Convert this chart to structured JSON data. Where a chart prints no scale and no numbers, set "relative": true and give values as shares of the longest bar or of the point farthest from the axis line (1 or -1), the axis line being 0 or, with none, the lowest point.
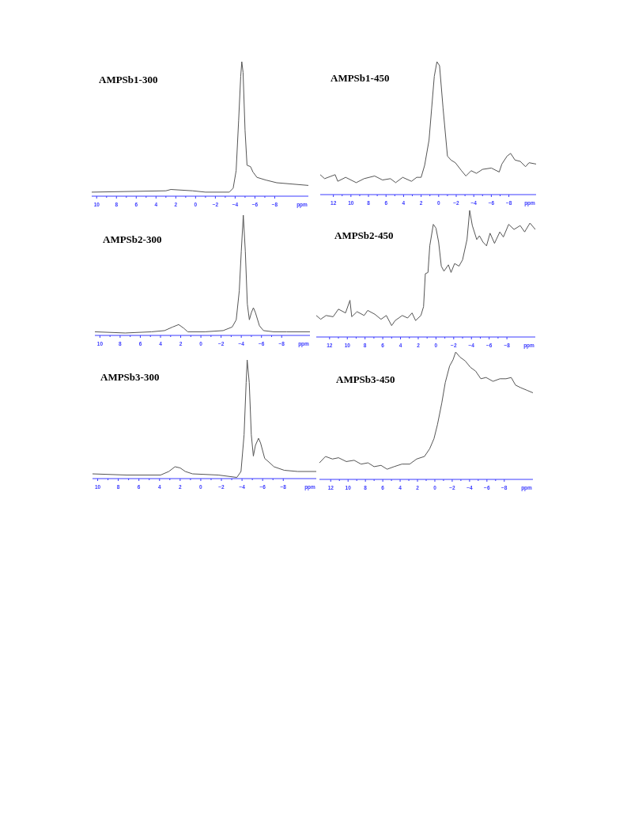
{
  "chart_data": [
    {
      "type": "line",
      "title": "AMPSb1-300",
      "xlabel": "ppm",
      "relative": true,
      "xlim": [
        10.5,
        -11.4
      ],
      "xticks": [
        10,
        8,
        6,
        4,
        2,
        0,
        -2,
        -4,
        -6,
        -8
      ],
      "series": [
        {
          "color": "#555555",
          "x": [
            10.5,
            3.0,
            2.5,
            0.3,
            -1.0,
            -3.4,
            -3.8,
            -4.1,
            -4.35,
            -4.56,
            -4.67,
            -4.8,
            -5.0,
            -5.2,
            -5.55,
            -5.8,
            -6.2,
            -7.1,
            -8.2,
            -9.8,
            -11.4
          ],
          "values": [
            0.03,
            0.04,
            0.05,
            0.04,
            0.03,
            0.03,
            0.06,
            0.19,
            0.56,
            0.89,
            1,
            0.92,
            0.49,
            0.23,
            0.22,
            0.18,
            0.14,
            0.12,
            0.1,
            0.09,
            0.08
          ]
        }
      ]
    },
    {
      "type": "line",
      "title": "AMPSb1-450",
      "xlabel": "ppm",
      "relative": true,
      "xlim": [
        13.5,
        -11.1
      ],
      "xticks": [
        12,
        10,
        8,
        6,
        4,
        2,
        0,
        -2,
        -4,
        -6,
        -8
      ],
      "series": [
        {
          "color": "#555555",
          "x": [
            13.5,
            13.0,
            11.8,
            11.5,
            10.6,
            9.4,
            8.5,
            7.3,
            6.4,
            5.5,
            4.9,
            4.1,
            3.1,
            2.5,
            2.0,
            1.6,
            1.1,
            0.8,
            0.5,
            0.2,
            -0.1,
            -0.5,
            -1.0,
            -1.4,
            -1.9,
            -2.6,
            -3.1,
            -3.7,
            -4.3,
            -5.0,
            -6.0,
            -6.9,
            -7.2,
            -7.8,
            -8.2,
            -8.7,
            -9.3,
            -9.9,
            -10.3,
            -11.1
          ],
          "values": [
            0.15,
            0.12,
            0.15,
            0.1,
            0.13,
            0.09,
            0.12,
            0.14,
            0.11,
            0.12,
            0.09,
            0.13,
            0.1,
            0.13,
            0.13,
            0.22,
            0.41,
            0.65,
            0.89,
            1,
            0.97,
            0.65,
            0.29,
            0.26,
            0.24,
            0.18,
            0.14,
            0.18,
            0.16,
            0.19,
            0.2,
            0.17,
            0.23,
            0.29,
            0.31,
            0.26,
            0.25,
            0.21,
            0.24,
            0.23
          ]
        }
      ]
    },
    {
      "type": "line",
      "title": "AMPSb2-300",
      "xlabel": "ppm",
      "relative": true,
      "xlim": [
        10.5,
        -10.8
      ],
      "xticks": [
        10,
        8,
        6,
        4,
        2,
        0,
        -2,
        -4,
        -6,
        -8
      ],
      "series": [
        {
          "color": "#555555",
          "x": [
            10.5,
            7.5,
            4.9,
            3.6,
            2.8,
            2.2,
            1.7,
            1.3,
            -0.4,
            -2.2,
            -3.1,
            -3.5,
            -3.8,
            -4.0,
            -4.2,
            -4.4,
            -4.6,
            -4.8,
            -5.0,
            -5.2,
            -5.4,
            -5.8,
            -6.2,
            -7.2,
            -8.5,
            -10.8
          ],
          "values": [
            0.03,
            0.02,
            0.03,
            0.04,
            0.07,
            0.09,
            0.06,
            0.03,
            0.03,
            0.04,
            0.07,
            0.13,
            0.37,
            0.7,
            1,
            0.7,
            0.26,
            0.13,
            0.19,
            0.23,
            0.19,
            0.08,
            0.04,
            0.03,
            0.03,
            0.03
          ]
        }
      ]
    },
    {
      "type": "line",
      "title": "AMPSb2-450",
      "xlabel": "ppm",
      "relative": true,
      "xlim": [
        13.5,
        -11.2
      ],
      "xticks": [
        12,
        10,
        8,
        6,
        4,
        2,
        0,
        -2,
        -4,
        -6,
        -8
      ],
      "series": [
        {
          "color": "#555555",
          "x": [
            13.5,
            13.0,
            12.4,
            11.6,
            11.0,
            10.2,
            9.7,
            9.5,
            8.9,
            8.1,
            7.7,
            6.9,
            6.2,
            5.6,
            5.0,
            4.6,
            3.8,
            3.2,
            2.7,
            2.3,
            1.7,
            1.4,
            1.2,
            0.9,
            0.7,
            0.3,
            0.0,
            -0.3,
            -0.6,
            -0.9,
            -1.4,
            -1.7,
            -2.1,
            -2.6,
            -3.0,
            -3.5,
            -3.8,
            -4.1,
            -4.6,
            -4.9,
            -5.3,
            -5.7,
            -6.1,
            -6.6,
            -7.2,
            -7.6,
            -8.2,
            -8.8,
            -9.5,
            -10.0,
            -10.6,
            -11.2
          ],
          "values": [
            0.17,
            0.14,
            0.17,
            0.16,
            0.22,
            0.19,
            0.29,
            0.16,
            0.2,
            0.17,
            0.21,
            0.18,
            0.14,
            0.17,
            0.09,
            0.13,
            0.17,
            0.15,
            0.19,
            0.13,
            0.17,
            0.24,
            0.5,
            0.51,
            0.72,
            0.89,
            0.86,
            0.75,
            0.56,
            0.52,
            0.57,
            0.51,
            0.58,
            0.56,
            0.61,
            0.77,
            1,
            0.88,
            0.77,
            0.8,
            0.75,
            0.72,
            0.82,
            0.74,
            0.83,
            0.79,
            0.89,
            0.85,
            0.88,
            0.83,
            0.9,
            0.85
          ]
        }
      ]
    },
    {
      "type": "line",
      "title": "AMPSb3-300",
      "xlabel": "ppm",
      "relative": true,
      "xlim": [
        10.5,
        -11.2
      ],
      "xticks": [
        10,
        8,
        6,
        4,
        2,
        0,
        -2,
        -4,
        -6,
        -8
      ],
      "series": [
        {
          "color": "#555555",
          "x": [
            10.5,
            7.2,
            3.9,
            3.1,
            2.5,
            2.0,
            1.5,
            0.8,
            -1.7,
            -3.5,
            -3.9,
            -4.2,
            -4.4,
            -4.5,
            -4.7,
            -4.9,
            -5.1,
            -5.3,
            -5.6,
            -5.8,
            -6.2,
            -6.6,
            -7.1,
            -8.1,
            -9.4,
            -11.2
          ],
          "values": [
            0.04,
            0.03,
            0.03,
            0.06,
            0.1,
            0.09,
            0.06,
            0.04,
            0.03,
            0.01,
            0.06,
            0.37,
            0.81,
            1,
            0.81,
            0.37,
            0.19,
            0.28,
            0.34,
            0.3,
            0.17,
            0.14,
            0.1,
            0.07,
            0.06,
            0.06
          ]
        }
      ]
    },
    {
      "type": "line",
      "title": "AMPSb3-450",
      "xlabel": "ppm",
      "relative": true,
      "xlim": [
        13.3,
        -11.3
      ],
      "xticks": [
        12,
        10,
        8,
        6,
        4,
        2,
        0,
        -2,
        -4,
        -6,
        -8
      ],
      "series": [
        {
          "color": "#555555",
          "x": [
            13.3,
            12.6,
            11.8,
            11.1,
            10.2,
            9.3,
            8.5,
            7.7,
            7.0,
            6.2,
            5.5,
            4.7,
            3.8,
            2.9,
            2.1,
            1.2,
            0.6,
            0.1,
            -0.3,
            -0.8,
            -1.2,
            -1.7,
            -2.1,
            -2.4,
            -2.9,
            -3.5,
            -4.1,
            -4.7,
            -5.3,
            -5.9,
            -6.7,
            -7.5,
            -8.2,
            -8.8,
            -9.3,
            -9.9,
            -10.6,
            -11.3
          ],
          "values": [
            0.13,
            0.18,
            0.16,
            0.17,
            0.14,
            0.15,
            0.12,
            0.13,
            0.1,
            0.11,
            0.08,
            0.1,
            0.12,
            0.12,
            0.16,
            0.18,
            0.24,
            0.32,
            0.43,
            0.6,
            0.76,
            0.89,
            0.94,
            1,
            0.96,
            0.93,
            0.88,
            0.85,
            0.79,
            0.8,
            0.77,
            0.79,
            0.79,
            0.8,
            0.74,
            0.72,
            0.7,
            0.68
          ]
        }
      ]
    }
  ]
}
